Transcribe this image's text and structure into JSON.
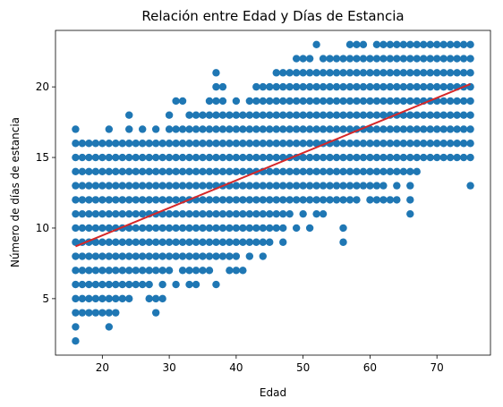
{
  "chart_data": {
    "type": "scatter",
    "title": "Relación entre Edad y Días de Estancia",
    "xlabel": "Edad",
    "ylabel": "Número de días de estancia",
    "xlim": [
      13.0,
      78.0
    ],
    "ylim": [
      1.0,
      24.0
    ],
    "xticks": [
      20,
      30,
      40,
      50,
      60,
      70
    ],
    "yticks": [
      5,
      10,
      15,
      20
    ],
    "grid": false,
    "legend": "none",
    "point_color": "#1f77b4",
    "line_color": "#d62728",
    "bands": [
      {
        "y": 2,
        "ranges": [
          [
            16,
            16
          ]
        ]
      },
      {
        "y": 3,
        "ranges": [
          [
            16,
            16
          ],
          [
            21,
            21
          ]
        ]
      },
      {
        "y": 4,
        "ranges": [
          [
            16,
            19
          ],
          [
            20,
            21
          ],
          [
            22,
            22
          ],
          [
            28,
            28
          ]
        ]
      },
      {
        "y": 5,
        "ranges": [
          [
            16,
            24
          ],
          [
            27,
            29
          ]
        ]
      },
      {
        "y": 6,
        "ranges": [
          [
            16,
            27
          ],
          [
            29,
            29
          ],
          [
            31,
            31
          ],
          [
            33,
            34
          ],
          [
            37,
            37
          ]
        ]
      },
      {
        "y": 7,
        "ranges": [
          [
            16,
            30
          ],
          [
            32,
            36
          ],
          [
            39,
            40
          ],
          [
            41,
            41
          ]
        ]
      },
      {
        "y": 8,
        "ranges": [
          [
            16,
            38
          ],
          [
            39,
            40
          ],
          [
            42,
            42
          ],
          [
            44,
            44
          ]
        ]
      },
      {
        "y": 9,
        "ranges": [
          [
            16,
            45
          ],
          [
            47,
            47
          ],
          [
            56,
            56
          ]
        ]
      },
      {
        "y": 10,
        "ranges": [
          [
            16,
            47
          ],
          [
            49,
            49
          ],
          [
            51,
            51
          ],
          [
            56,
            56
          ]
        ]
      },
      {
        "y": 11,
        "ranges": [
          [
            16,
            47
          ],
          [
            48,
            48
          ],
          [
            50,
            50
          ],
          [
            52,
            53
          ],
          [
            66,
            66
          ]
        ]
      },
      {
        "y": 12,
        "ranges": [
          [
            16,
            53
          ],
          [
            54,
            55
          ],
          [
            56,
            56
          ],
          [
            57,
            58
          ],
          [
            60,
            64
          ],
          [
            66,
            66
          ]
        ]
      },
      {
        "y": 13,
        "ranges": [
          [
            16,
            62
          ],
          [
            64,
            64
          ],
          [
            66,
            66
          ],
          [
            75,
            75
          ]
        ]
      },
      {
        "y": 14,
        "ranges": [
          [
            16,
            67
          ]
        ]
      },
      {
        "y": 15,
        "ranges": [
          [
            16,
            75
          ]
        ]
      },
      {
        "y": 16,
        "ranges": [
          [
            16,
            75
          ]
        ]
      },
      {
        "y": 17,
        "ranges": [
          [
            16,
            16
          ],
          [
            21,
            21
          ],
          [
            24,
            24
          ],
          [
            26,
            26
          ],
          [
            28,
            28
          ],
          [
            30,
            75
          ]
        ]
      },
      {
        "y": 18,
        "ranges": [
          [
            24,
            24
          ],
          [
            30,
            30
          ],
          [
            33,
            75
          ]
        ]
      },
      {
        "y": 19,
        "ranges": [
          [
            31,
            32
          ],
          [
            36,
            38
          ],
          [
            40,
            40
          ],
          [
            42,
            75
          ]
        ]
      },
      {
        "y": 20,
        "ranges": [
          [
            37,
            38
          ],
          [
            43,
            75
          ]
        ]
      },
      {
        "y": 21,
        "ranges": [
          [
            37,
            37
          ],
          [
            46,
            75
          ]
        ]
      },
      {
        "y": 22,
        "ranges": [
          [
            49,
            51
          ],
          [
            53,
            75
          ]
        ]
      },
      {
        "y": 23,
        "ranges": [
          [
            52,
            52
          ],
          [
            57,
            59
          ],
          [
            61,
            75
          ]
        ]
      }
    ],
    "trendline": {
      "x": [
        16,
        75
      ],
      "y": [
        8.7,
        20.2
      ]
    }
  }
}
